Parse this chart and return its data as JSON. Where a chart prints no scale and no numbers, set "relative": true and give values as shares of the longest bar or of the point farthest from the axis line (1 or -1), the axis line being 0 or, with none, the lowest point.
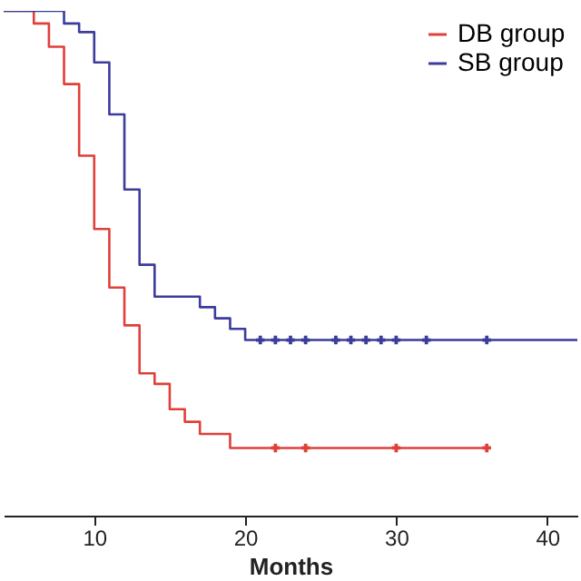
{
  "chart_data": {
    "type": "step",
    "xlabel": "Months",
    "relative": true,
    "xlim": [
      4,
      42
    ],
    "xticks": [
      10,
      20,
      30,
      40
    ],
    "grid": false,
    "legend": "top right",
    "series": [
      {
        "name": "DB group",
        "color": "#e0403a",
        "x": [
          4,
          6,
          7,
          8,
          9,
          10,
          11,
          12,
          13,
          14,
          15,
          16,
          17,
          19,
          36
        ],
        "values": [
          1.0,
          0.975,
          0.929,
          0.855,
          0.713,
          0.568,
          0.452,
          0.377,
          0.282,
          0.261,
          0.211,
          0.186,
          0.162,
          0.134,
          0.134
        ]
      },
      {
        "name": "SB group",
        "color": "#3c3c9c",
        "x": [
          4,
          8,
          9,
          10,
          11,
          12,
          13,
          14,
          17,
          18,
          19,
          20,
          42
        ],
        "values": [
          1.0,
          0.975,
          0.958,
          0.898,
          0.795,
          0.646,
          0.497,
          0.434,
          0.413,
          0.391,
          0.37,
          0.348,
          0.348
        ]
      },
      {
        "type": "scatter",
        "marker": "cross",
        "color": "#e0403a",
        "x": [
          22,
          24,
          30,
          36
        ],
        "values": [
          0.134,
          0.134,
          0.134,
          0.134
        ]
      },
      {
        "type": "scatter",
        "marker": "cross",
        "color": "#3c3c9c",
        "x": [
          21,
          22,
          23,
          24,
          26,
          27,
          28,
          29,
          30,
          32,
          36
        ],
        "values": [
          0.348,
          0.348,
          0.348,
          0.348,
          0.348,
          0.348,
          0.348,
          0.348,
          0.348,
          0.348,
          0.348
        ]
      }
    ]
  }
}
